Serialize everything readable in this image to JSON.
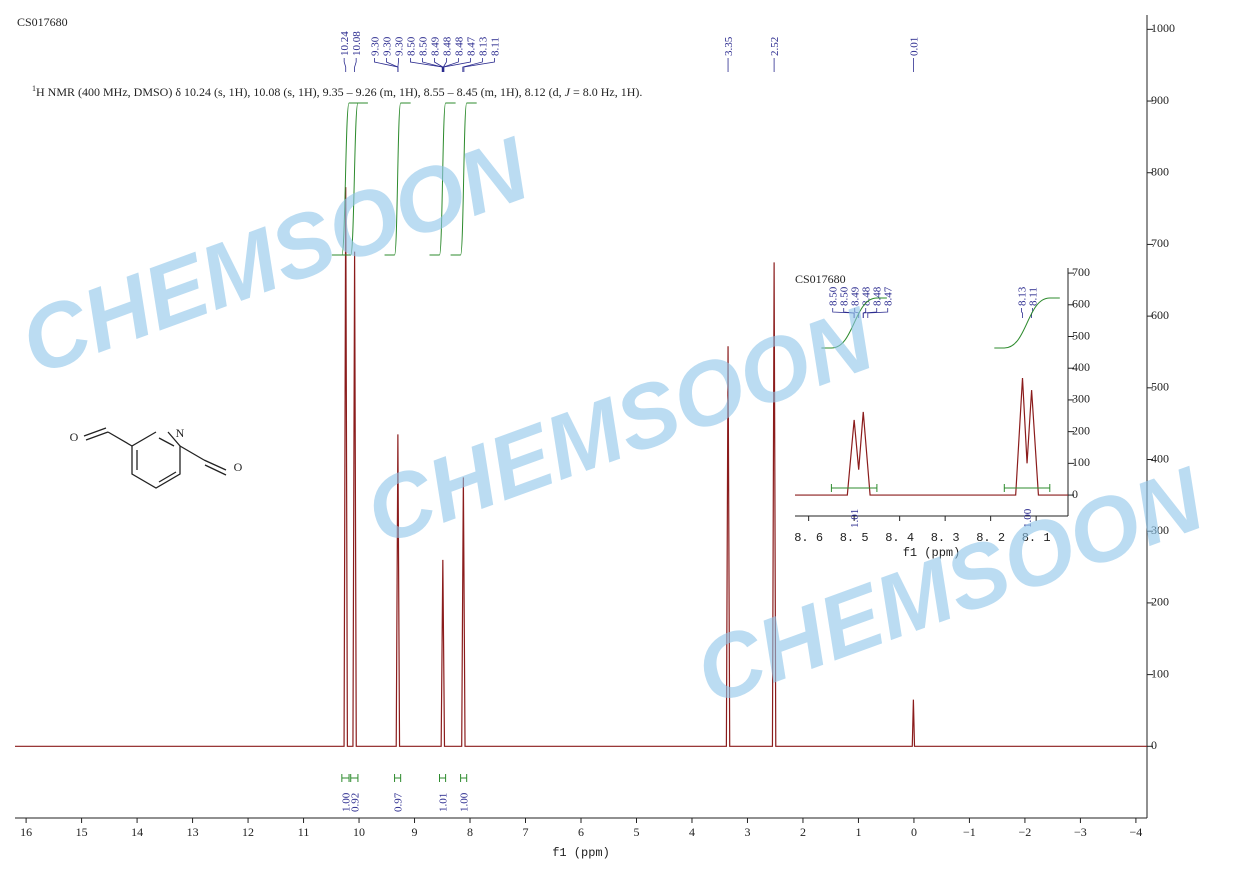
{
  "chart_data": [
    {
      "type": "line",
      "title": "CS017680",
      "annotation": {
        "superscript": "1",
        "text": "H NMR (400 MHz, DMSO) δ 10.24 (s, 1H), 10.08 (s, 1H), 9.35 – 9.26 (m, 1H), 8.55 – 8.45 (m, 1H), 8.12 (d, ",
        "italic": "J",
        "text_end": " = 8.0 Hz, 1H)."
      },
      "x_label": "f1 (ppm)",
      "xlim": [
        16.2,
        -4.2
      ],
      "xticks": [
        16,
        15,
        14,
        13,
        12,
        11,
        10,
        9,
        8,
        7,
        6,
        5,
        4,
        3,
        2,
        1,
        0,
        {
          "value": -1,
          "label": "−1"
        },
        {
          "value": -2,
          "label": "−2"
        },
        {
          "value": -3,
          "label": "−3"
        },
        {
          "value": -4,
          "label": "−4"
        }
      ],
      "ylim": [
        -100,
        1020
      ],
      "yticks": [
        0,
        100,
        200,
        300,
        400,
        500,
        600,
        700,
        800,
        900,
        1000
      ],
      "series": [
        {
          "color": "#8b1c1c",
          "x": [
            16.2,
            10.27,
            10.24,
            10.21,
            10.11,
            10.08,
            10.05,
            9.33,
            9.3,
            9.27,
            8.52,
            8.49,
            8.46,
            8.15,
            8.12,
            8.09,
            3.38,
            3.35,
            3.32,
            2.55,
            2.52,
            2.49,
            0.03,
            0.01,
            -0.01,
            -4.2
          ],
          "values": [
            0,
            0,
            780,
            0,
            0,
            690,
            0,
            0,
            435,
            0,
            0,
            260,
            0,
            0,
            375,
            0,
            0,
            558,
            0,
            0,
            675,
            0,
            0,
            65,
            0,
            0
          ]
        }
      ],
      "peak_labels": [
        {
          "value": 10.24,
          "label": "10.24"
        },
        {
          "value": 10.08,
          "label": "10.08"
        },
        {
          "value": 9.3,
          "label": "9.30"
        },
        {
          "value": 9.3,
          "label": "9.30"
        },
        {
          "value": 9.3,
          "label": "9.30"
        },
        {
          "value": 8.5,
          "label": "8.50"
        },
        {
          "value": 8.5,
          "label": "8.50"
        },
        8.49,
        8.48,
        8.48,
        8.47,
        8.13,
        8.11,
        3.35,
        2.52,
        0.01
      ],
      "integrals": [
        {
          "value": 1.0,
          "label": "1.00",
          "range": [
            10.31,
            10.18
          ]
        },
        {
          "value": 0.92,
          "label": "0.92",
          "range": [
            10.15,
            10.02
          ]
        },
        {
          "value": 0.97,
          "label": "0.97",
          "range": [
            9.36,
            9.25
          ]
        },
        {
          "value": 1.01,
          "label": "1.01",
          "range": [
            8.55,
            8.44
          ]
        },
        {
          "value": 1.0,
          "label": "1.00",
          "range": [
            8.17,
            8.06
          ]
        }
      ],
      "integral_color": "#2e8b2e"
    },
    {
      "type": "line",
      "title": "CS017680",
      "x_label": "f1 (ppm)",
      "xlim": [
        8.63,
        8.03
      ],
      "xticks": [
        {
          "value": 8.6,
          "label": "8. 6"
        },
        {
          "value": 8.5,
          "label": "8. 5"
        },
        {
          "value": 8.4,
          "label": "8. 4"
        },
        {
          "value": 8.3,
          "label": "8. 3"
        },
        {
          "value": 8.2,
          "label": "8. 2"
        },
        {
          "value": 8.1,
          "label": "8. 1"
        }
      ],
      "ylim": [
        -66,
        716
      ],
      "yticks": [
        0,
        100,
        200,
        300,
        400,
        500,
        600,
        700
      ],
      "series": [
        {
          "color": "#8b1c1c",
          "x": [
            8.63,
            8.515,
            8.5,
            8.49,
            8.48,
            8.465,
            8.145,
            8.13,
            8.12,
            8.11,
            8.095,
            8.03
          ],
          "values": [
            0,
            0,
            237,
            80,
            262,
            0,
            0,
            369,
            100,
            331,
            0,
            0
          ]
        }
      ],
      "peak_labels": [
        {
          "value": 8.5,
          "label": "8.50"
        },
        {
          "value": 8.5,
          "label": "8.50"
        },
        8.49,
        8.48,
        8.48,
        8.47,
        8.13,
        8.11
      ],
      "integrals": [
        {
          "value": 1.01,
          "label": "1.01",
          "range": [
            8.55,
            8.45
          ]
        },
        {
          "value": 1.0,
          "label": "1.00",
          "range": [
            8.17,
            8.07
          ]
        }
      ],
      "integral_color": "#2e8b2e"
    }
  ],
  "structure": {
    "atoms": [
      "O",
      "N",
      "O"
    ]
  },
  "watermarks": [
    "CHEMSOON",
    "CHEMSOON",
    "CHEMSOON"
  ]
}
